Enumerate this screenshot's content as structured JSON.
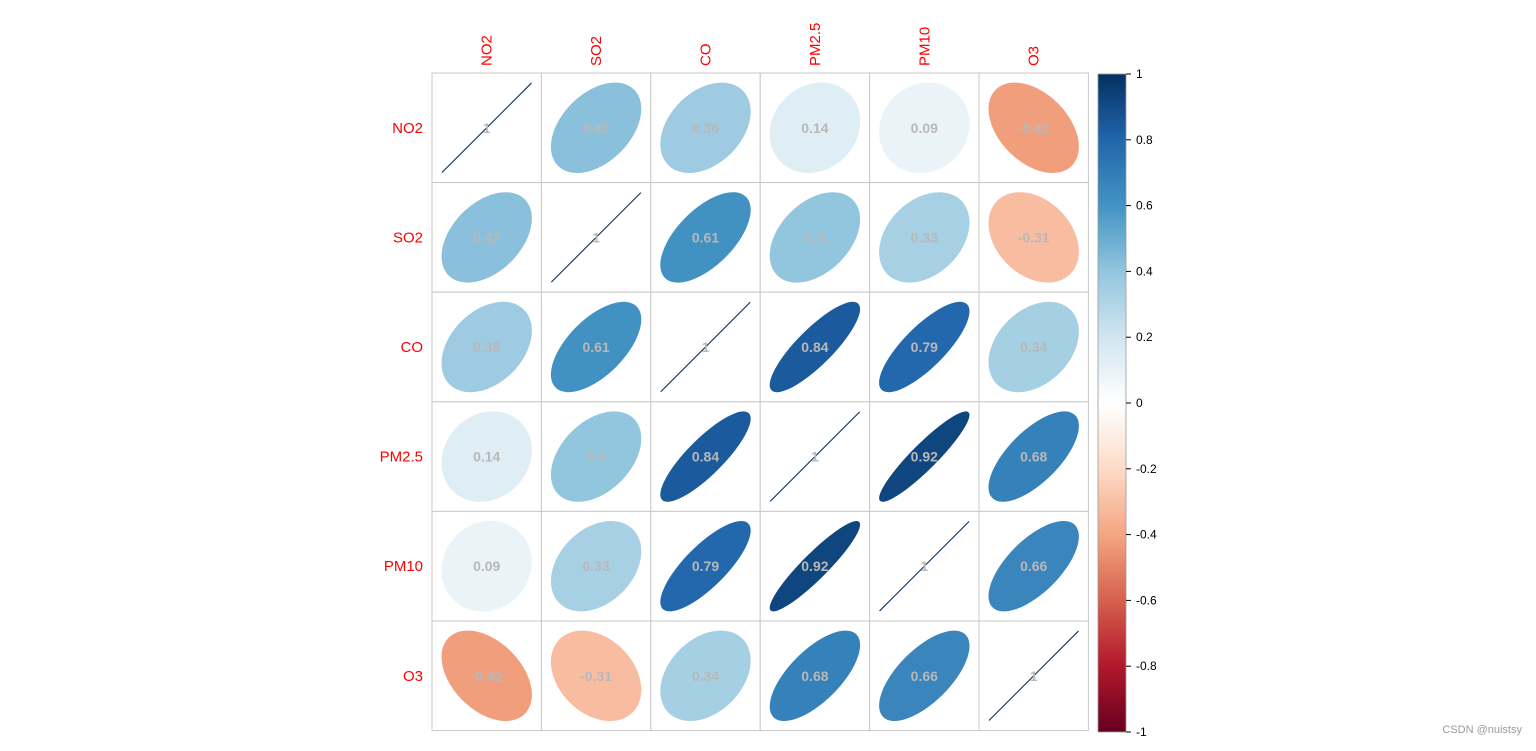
{
  "chart_data": {
    "type": "heatmap",
    "method": "ellipse",
    "variables": [
      "NO2",
      "SO2",
      "CO",
      "PM2.5",
      "PM10",
      "O3"
    ],
    "matrix": [
      [
        1,
        0.42,
        0.36,
        0.14,
        0.09,
        -0.42
      ],
      [
        0.42,
        1,
        0.61,
        0.4,
        0.33,
        -0.31
      ],
      [
        0.36,
        0.61,
        1,
        0.84,
        0.79,
        0.34
      ],
      [
        0.14,
        0.4,
        0.84,
        1,
        0.92,
        0.68
      ],
      [
        0.09,
        0.33,
        0.79,
        0.92,
        1,
        0.66
      ],
      [
        -0.42,
        -0.31,
        0.34,
        0.68,
        0.66,
        1
      ]
    ],
    "label_color": "#ff0000",
    "coef_color": "#b8b8b8",
    "colorbar": {
      "ticks": [
        "1",
        "0.8",
        "0.6",
        "0.4",
        "0.2",
        "0",
        "-0.2",
        "-0.4",
        "-0.6",
        "-0.8",
        "-1"
      ],
      "range": [
        -1,
        1
      ]
    },
    "palette": [
      "#67001f",
      "#b2182b",
      "#d6604d",
      "#f4a582",
      "#fddbc7",
      "#ffffff",
      "#d1e5f0",
      "#92c5de",
      "#4393c3",
      "#2166ac",
      "#053061"
    ]
  },
  "watermark": "CSDN @nuistsy"
}
